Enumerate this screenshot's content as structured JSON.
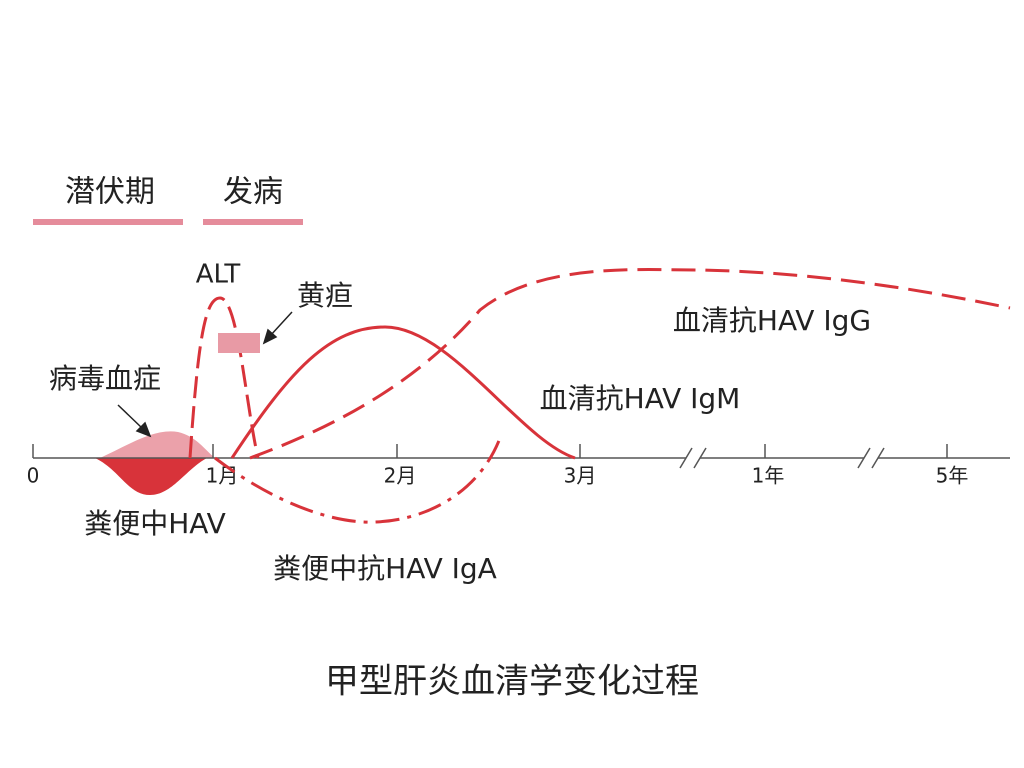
{
  "phases": [
    "潜伏期",
    "发病"
  ],
  "labels": {
    "alt": "ALT",
    "jaundice": "黄疸",
    "viremia": "病毒血症",
    "igg": "血清抗HAV IgG",
    "igm": "血清抗HAV IgM",
    "fecal_hav": "粪便中HAV",
    "fecal_iga": "粪便中抗HAV IgA"
  },
  "axis_ticks": [
    "0",
    "1月",
    "2月",
    "3月",
    "1年",
    "5年"
  ],
  "caption": "甲型肝炎血清学变化过程"
}
